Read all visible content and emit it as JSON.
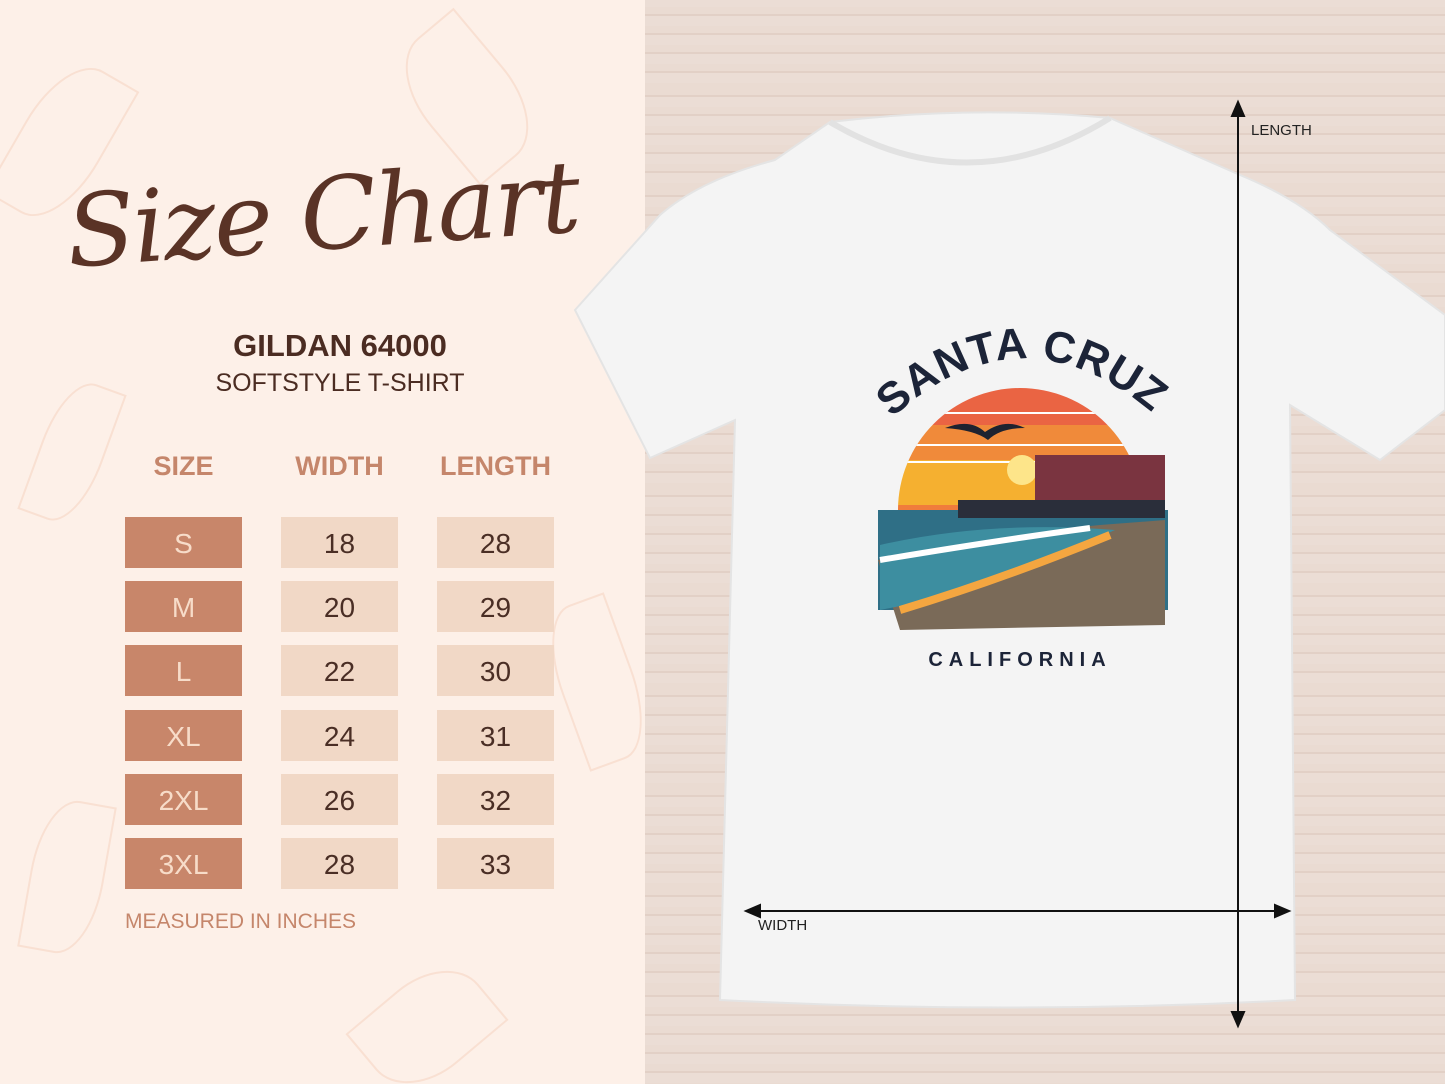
{
  "title": "Size Chart",
  "product": {
    "brand": "GILDAN 64000",
    "style": "SOFTSTYLE T-SHIRT"
  },
  "table": {
    "headers": [
      "SIZE",
      "WIDTH",
      "LENGTH"
    ],
    "rows": [
      {
        "size": "S",
        "width": "18",
        "length": "28"
      },
      {
        "size": "M",
        "width": "20",
        "length": "29"
      },
      {
        "size": "L",
        "width": "22",
        "length": "30"
      },
      {
        "size": "XL",
        "width": "24",
        "length": "31"
      },
      {
        "size": "2XL",
        "width": "26",
        "length": "32"
      },
      {
        "size": "3XL",
        "width": "28",
        "length": "33"
      }
    ]
  },
  "note": "MEASURED IN INCHES",
  "measurements": {
    "length_label": "LENGTH",
    "width_label": "WIDTH"
  },
  "print": {
    "headline": "SANTA CRUZ",
    "subline": "CALIFORNIA"
  },
  "colors": {
    "size_cell": "#c8866a",
    "value_cell": "#f1d8c6",
    "header": "#c5866b",
    "title": "#5a3326",
    "shirt": "#f4f4f4"
  }
}
